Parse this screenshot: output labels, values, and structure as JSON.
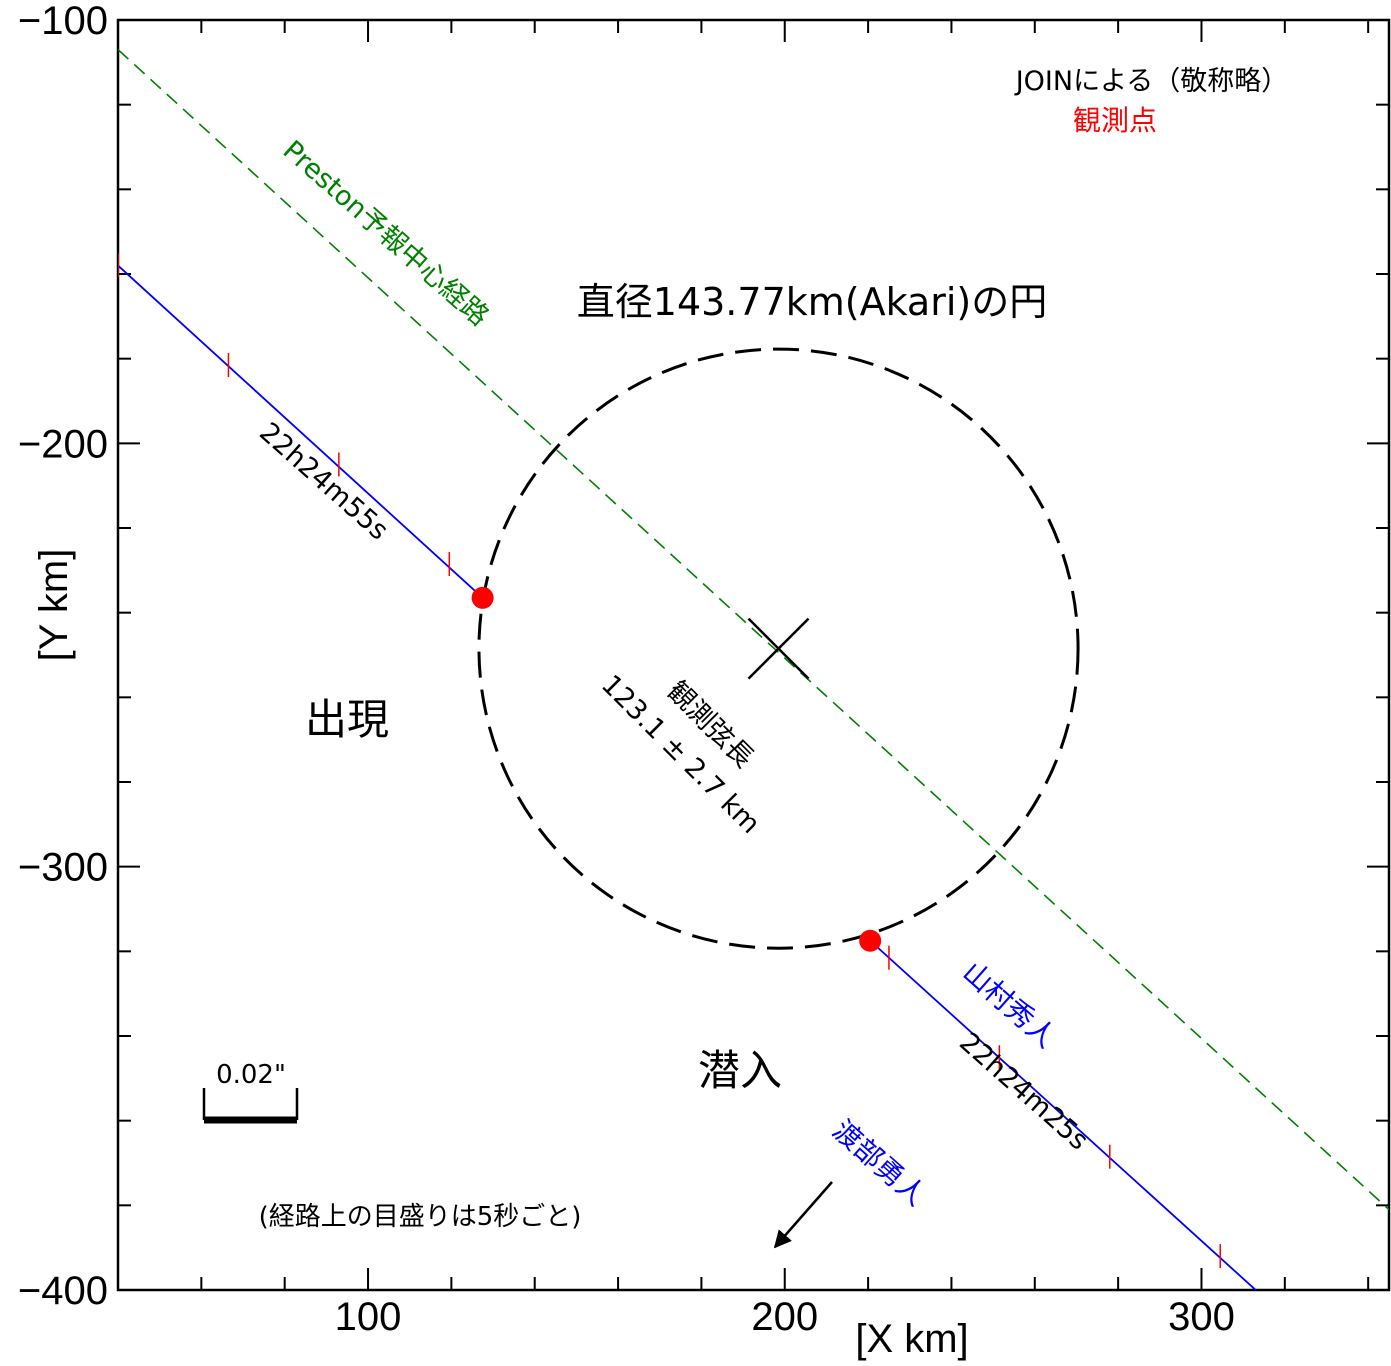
{
  "chart_data": {
    "type": "scatter",
    "xlabel": "[X  km]",
    "ylabel": "[Y  km]",
    "xlim": [
      40,
      345
    ],
    "ylim": [
      -400,
      -100
    ],
    "x_ticks": [
      100,
      200,
      300
    ],
    "y_ticks": [
      -100,
      -200,
      -300,
      -400
    ],
    "x_tick_labels": [
      "100",
      "200",
      "300"
    ],
    "y_tick_labels": [
      "−100",
      "−200",
      "−300",
      "−400"
    ],
    "circle": {
      "label": "直径143.77km(Akari)の円",
      "center": [
        198.5,
        -248.5
      ],
      "diameter_km": 143.77
    },
    "prediction_line": {
      "label": "Preston予報中心経路",
      "color": "#008000",
      "points": [
        [
          40,
          -107
        ],
        [
          345,
          -381
        ]
      ]
    },
    "chords": [
      {
        "observer": "山村秀人",
        "time_label": "22h24m55s",
        "color": "#0000ff",
        "points": [
          [
            40,
            -158
          ],
          [
            127.5,
            -236.5
          ]
        ],
        "ticks": [
          [
            40,
            -158
          ],
          [
            66.5,
            -181.5
          ],
          [
            93,
            -205
          ],
          [
            119.5,
            -228.5
          ]
        ]
      },
      {
        "observer": "渡部勇人",
        "time_label": "22h24m25s",
        "color": "#0000ff",
        "points": [
          [
            220.5,
            -317.5
          ],
          [
            317.5,
            -404
          ]
        ],
        "ticks": [
          [
            225,
            -321.5
          ],
          [
            251.5,
            -345
          ],
          [
            278,
            -368.5
          ],
          [
            304.5,
            -392
          ]
        ]
      }
    ],
    "observation_points": [
      [
        127.5,
        -236.5
      ],
      [
        220.5,
        -317.5
      ]
    ],
    "chord_length_label": [
      "観測弦長",
      "123.1 ± 2.7 km"
    ],
    "annotations": {
      "join": "JOINによる（敬称略）",
      "observation_point": "観測点",
      "reappearance": "出現",
      "disappearance": "潜入",
      "scale": "0.02\"",
      "tick_note": "(経路上の目盛りは5秒ごと)"
    },
    "colors": {
      "axes": "#000000",
      "chord": "#0000ff",
      "prediction": "#008000",
      "observation_point": "#ff0000",
      "tick": "#ff0000"
    }
  }
}
